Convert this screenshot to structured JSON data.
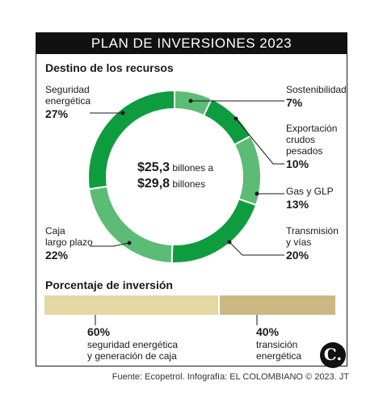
{
  "header": {
    "title": "PLAN DE INVERSIONES 2023"
  },
  "section1": {
    "title": "Destino de los recursos"
  },
  "center": {
    "amount1": "$25,3",
    "text1": "billones a",
    "amount2": "$29,8",
    "text2": "billones"
  },
  "labels": {
    "seguridad": {
      "line1": "Seguridad",
      "line2": "energética",
      "pct": "27%"
    },
    "sostenibilidad": {
      "line1": "Sostenibilidad",
      "pct": "7%"
    },
    "exportacion": {
      "line1": "Exportación",
      "line2": "crudos",
      "line3": "pesados",
      "pct": "10%"
    },
    "gas": {
      "line1": "Gas y GLP",
      "pct": "13%"
    },
    "transmision": {
      "line1": "Transmisión",
      "line2": "y vías",
      "pct": "20%"
    },
    "caja": {
      "line1": "Caja",
      "line2": "largo plazo",
      "pct": "22%"
    }
  },
  "section2": {
    "title": "Porcentaje de inversión"
  },
  "bottom": {
    "left": {
      "pct": "60%",
      "line1": "seguridad energética",
      "line2": "y generación de caja"
    },
    "right": {
      "pct": "40%",
      "line1": "transición",
      "line2": "energética"
    }
  },
  "footer": {
    "source": "Fuente: Ecopetrol. Infografía: EL COLOMBIANO © 2023. JT"
  },
  "logo": {
    "text": "C."
  },
  "colors": {
    "dark_green": "#0f9c3f",
    "light_green": "#5cbb74",
    "bar_light": "#e3d8a2",
    "bar_dark": "#cbb882"
  },
  "chart_data": [
    {
      "type": "pie",
      "title": "Destino de los recursos",
      "categories": [
        "Sostenibilidad",
        "Exportación crudos pesados",
        "Gas y GLP",
        "Transmisión y vías",
        "Caja largo plazo",
        "Seguridad energética"
      ],
      "values": [
        7,
        10,
        13,
        20,
        22,
        27
      ],
      "colors": [
        "#5cbb74",
        "#0f9c3f",
        "#5cbb74",
        "#0f9c3f",
        "#5cbb74",
        "#0f9c3f"
      ],
      "donut": true
    },
    {
      "type": "bar",
      "title": "Porcentaje de inversión",
      "categories": [
        "seguridad energética y generación de caja",
        "transición energética"
      ],
      "values": [
        60,
        40
      ],
      "stacked": true,
      "colors": [
        "#e3d8a2",
        "#cbb882"
      ]
    }
  ]
}
